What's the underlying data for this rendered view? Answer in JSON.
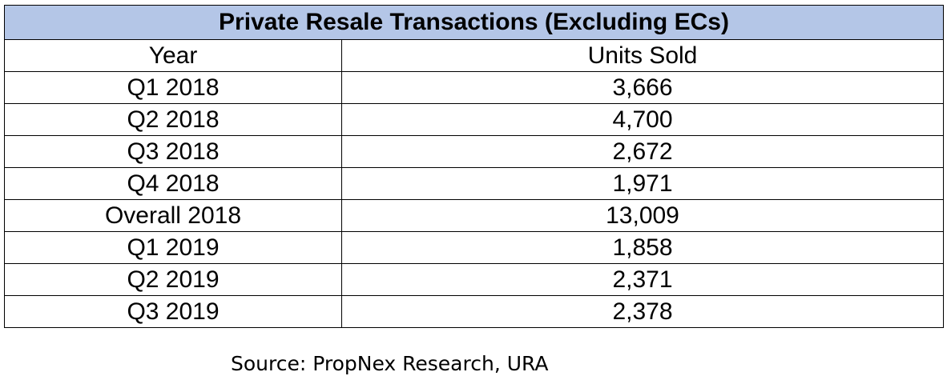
{
  "table": {
    "title": "Private Resale Transactions (Excluding ECs)",
    "header": [
      "Year",
      "Units Sold"
    ],
    "rows": [
      [
        "Q1 2018",
        "3,666"
      ],
      [
        "Q2 2018",
        "4,700"
      ],
      [
        "Q3 2018",
        "2,672"
      ],
      [
        "Q4 2018",
        "1,971"
      ],
      [
        "Overall 2018",
        "13,009"
      ],
      [
        "Q1 2019",
        "1,858"
      ],
      [
        "Q2 2019",
        "2,371"
      ],
      [
        "Q3 2019",
        "2,378"
      ]
    ]
  },
  "source": "Source: PropNex Research, URA"
}
